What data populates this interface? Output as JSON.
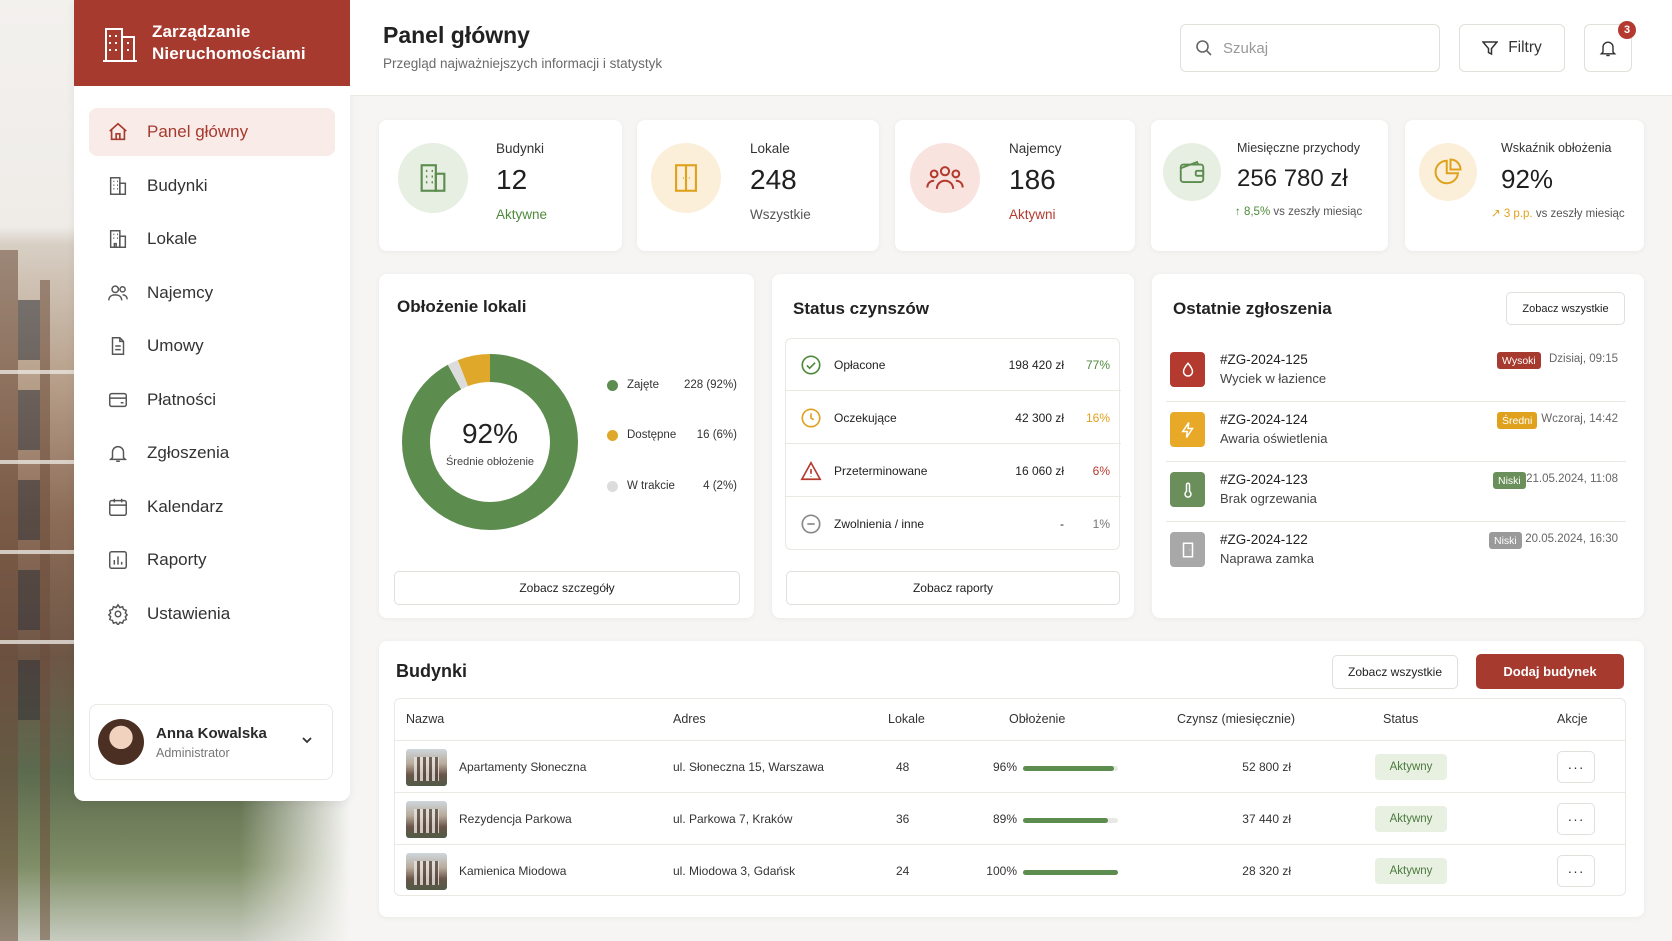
{
  "brand": {
    "title_line1": "Zarządzanie",
    "title_line2": "Nieruchomościami"
  },
  "sidebar": {
    "items": [
      {
        "label": "Panel główny",
        "icon": "home-icon",
        "active": true
      },
      {
        "label": "Budynki",
        "icon": "building-icon"
      },
      {
        "label": "Lokale",
        "icon": "apartment-icon"
      },
      {
        "label": "Najemcy",
        "icon": "users-icon"
      },
      {
        "label": "Umowy",
        "icon": "document-icon"
      },
      {
        "label": "Płatności",
        "icon": "payment-icon"
      },
      {
        "label": "Zgłoszenia",
        "icon": "bell-icon"
      },
      {
        "label": "Kalendarz",
        "icon": "calendar-icon"
      },
      {
        "label": "Raporty",
        "icon": "chart-icon"
      },
      {
        "label": "Ustawienia",
        "icon": "gear-icon"
      }
    ]
  },
  "user": {
    "name": "Anna Kowalska",
    "role": "Administrator"
  },
  "header": {
    "title": "Panel główny",
    "subtitle": "Przegląd najważniejszych informacji i statystyk",
    "search_placeholder": "Szukaj",
    "filters_label": "Filtry",
    "notifications_count": "3"
  },
  "stats": [
    {
      "label": "Budynki",
      "value": "12",
      "sub": "Aktywne",
      "sub_color": "#4f8a3c"
    },
    {
      "label": "Lokale",
      "value": "248",
      "sub": "Wszystkie",
      "sub_color": "#555555"
    },
    {
      "label": "Najemcy",
      "value": "186",
      "sub": "Aktywni",
      "sub_color": "#b43a2f"
    },
    {
      "label": "Miesięczne przychody",
      "value": "256 780 zł",
      "trend_value": "8,5%",
      "trend_text": "vs zeszły miesiąc",
      "trend_color": "#4f8a3c"
    },
    {
      "label": "Wskaźnik obłożenia",
      "value": "92%",
      "trend_value": "3 p.p.",
      "trend_text": "vs zeszły miesiąc",
      "trend_color": "#e0a21d"
    }
  ],
  "occupancy": {
    "title": "Obłożenie lokali",
    "center_value": "92%",
    "center_label": "Średnie obłożenie",
    "button": "Zobacz szczegóły",
    "legend": [
      {
        "label": "Zajęte",
        "value": "228 (92%)",
        "color": "#5c8c4e",
        "pct": 92
      },
      {
        "label": "Dostępne",
        "value": "16 (6%)",
        "color": "#e0a82a",
        "pct": 6
      },
      {
        "label": "W trakcie",
        "value": "4 (2%)",
        "color": "#dcdcdc",
        "pct": 2
      }
    ]
  },
  "rent": {
    "title": "Status czynszów",
    "button": "Zobacz raporty",
    "rows": [
      {
        "label": "Opłacone",
        "amount": "198 420 zł",
        "pct": "77%",
        "color": "#4f8a3c",
        "icon": "check-circle-icon"
      },
      {
        "label": "Oczekujące",
        "amount": "42 300 zł",
        "pct": "16%",
        "color": "#e0a21d",
        "icon": "clock-icon"
      },
      {
        "label": "Przeterminowane",
        "amount": "16 060 zł",
        "pct": "6%",
        "color": "#b43a2f",
        "icon": "warning-icon"
      },
      {
        "label": "Zwolnienia / inne",
        "amount": "-",
        "pct": "1%",
        "color": "#777777",
        "icon": "minus-circle-icon"
      }
    ]
  },
  "tickets": {
    "title": "Ostatnie zgłoszenia",
    "button": "Zobacz wszystkie",
    "items": [
      {
        "id": "#ZG-2024-125",
        "title": "Wyciek w łazience",
        "priority": "Wysoki",
        "priority_color": "#a63a2f",
        "date": "Dzisiaj, 09:15",
        "icon_color": "#b43a2f",
        "icon": "water-drop-icon"
      },
      {
        "id": "#ZG-2024-124",
        "title": "Awaria oświetlenia",
        "priority": "Średni",
        "priority_color": "#e0a21d",
        "date": "Wczoraj, 14:42",
        "icon_color": "#e8a928",
        "icon": "lightning-icon"
      },
      {
        "id": "#ZG-2024-123",
        "title": "Brak ogrzewania",
        "priority": "Niski",
        "priority_color": "#6b8f5a",
        "date": "21.05.2024, 11:08",
        "icon_color": "#6b8f5a",
        "icon": "thermometer-icon"
      },
      {
        "id": "#ZG-2024-122",
        "title": "Naprawa zamka",
        "priority": "Niski",
        "priority_color": "#9a9a9a",
        "date": "20.05.2024, 16:30",
        "icon_color": "#a8a8a8",
        "icon": "door-icon"
      }
    ]
  },
  "buildings": {
    "title": "Budynki",
    "view_all": "Zobacz wszystkie",
    "add": "Dodaj budynek",
    "columns": [
      "Nazwa",
      "Adres",
      "Lokale",
      "Obłożenie",
      "Czynsz (miesięcznie)",
      "Status",
      "Akcje"
    ],
    "rows": [
      {
        "name": "Apartamenty Słoneczna",
        "address": "ul. Słoneczna 15, Warszawa",
        "units": "48",
        "occupancy": "96%",
        "occ": 96,
        "rent": "52 800 zł",
        "status": "Aktywny"
      },
      {
        "name": "Rezydencja Parkowa",
        "address": "ul. Parkowa 7, Kraków",
        "units": "36",
        "occupancy": "89%",
        "occ": 89,
        "rent": "37 440 zł",
        "status": "Aktywny"
      },
      {
        "name": "Kamienica Miodowa",
        "address": "ul. Miodowa 3, Gdańsk",
        "units": "24",
        "occupancy": "100%",
        "occ": 100,
        "rent": "28 320 zł",
        "status": "Aktywny"
      }
    ],
    "actions_label": "···"
  }
}
